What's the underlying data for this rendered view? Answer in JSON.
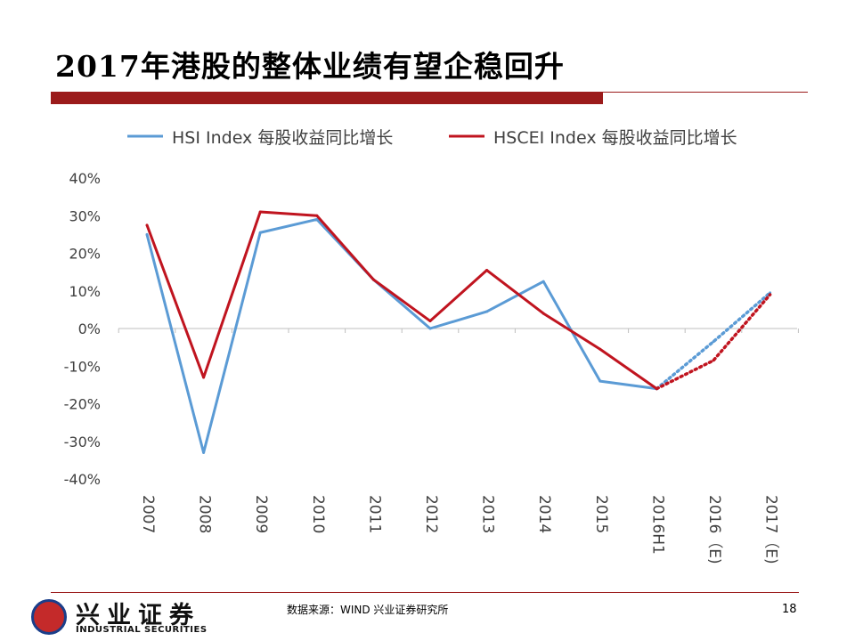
{
  "title": "2017年港股的整体业绩有望企稳回升",
  "footer": {
    "source": "数据来源：WIND 兴业证券研究所",
    "page_number": "18",
    "logo_cn": "兴业证券",
    "logo_en": "INDUSTRIAL SECURITIES"
  },
  "colors": {
    "hsi": "#5b9bd5",
    "hscei": "#c0141f",
    "accent": "#9b1b1b"
  },
  "chart_data": {
    "type": "line",
    "title": "",
    "xlabel": "",
    "ylabel": "",
    "categories": [
      "2007",
      "2008",
      "2009",
      "2010",
      "2011",
      "2012",
      "2013",
      "2014",
      "2015",
      "2016H1",
      "2016（E)",
      "2017（E)"
    ],
    "ylim": [
      -40,
      40
    ],
    "yticks": [
      40,
      30,
      20,
      10,
      0,
      -10,
      -20,
      -30,
      -40
    ],
    "ytick_labels": [
      "40%",
      "30%",
      "20%",
      "10%",
      "0%",
      "-10%",
      "-20%",
      "-30%",
      "-40%"
    ],
    "legend_position": "top",
    "series": [
      {
        "name": "HSI Index 每股收益同比增长",
        "color": "#5b9bd5",
        "values": [
          25,
          -33,
          25.5,
          29,
          13,
          0,
          4.5,
          12.5,
          -14,
          -16,
          -3.5,
          9.5
        ],
        "estimated_from_index": 9
      },
      {
        "name": "HSCEI Index 每股收益同比增长",
        "color": "#c0141f",
        "values": [
          27.5,
          -13,
          31,
          30,
          13,
          2,
          15.5,
          4,
          -5.5,
          -16,
          -8.5,
          9
        ],
        "estimated_from_index": 9
      }
    ]
  }
}
